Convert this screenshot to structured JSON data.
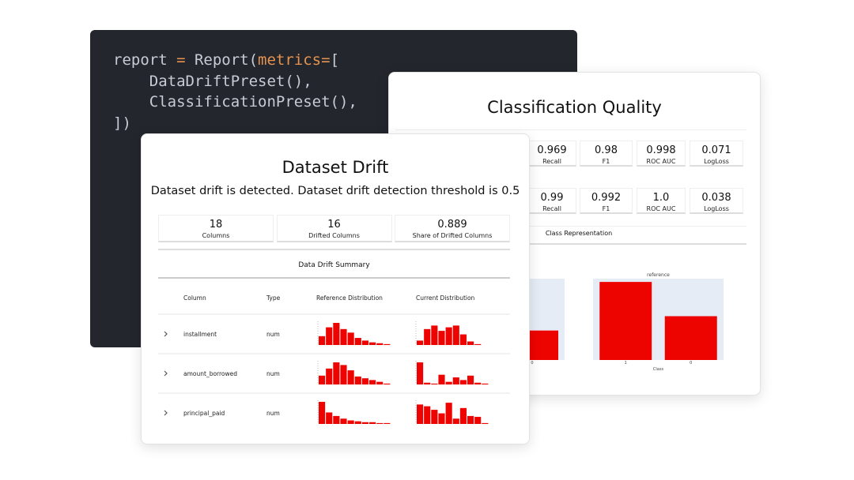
{
  "code": {
    "lines": [
      [
        {
          "t": "report ",
          "k": "p"
        },
        {
          "t": "= ",
          "k": "o"
        },
        {
          "t": "Report(",
          "k": "p"
        },
        {
          "t": "metrics=",
          "k": "o"
        },
        {
          "t": "[",
          "k": "p"
        }
      ],
      [
        {
          "t": "    DataDriftPreset(),",
          "k": "p"
        }
      ],
      [
        {
          "t": "    ClassificationPreset(),",
          "k": "p"
        }
      ],
      [
        {
          "t": "])",
          "k": "p"
        }
      ]
    ]
  },
  "quality": {
    "title": "Classification Quality",
    "rows": [
      [
        {
          "value": "0.969",
          "label": "Recall"
        },
        {
          "value": "0.98",
          "label": "F1"
        },
        {
          "value": "0.998",
          "label": "ROC AUC"
        },
        {
          "value": "0.071",
          "label": "LogLoss"
        }
      ],
      [
        {
          "value": "0.99",
          "label": "Recall"
        },
        {
          "value": "0.992",
          "label": "F1"
        },
        {
          "value": "1.0",
          "label": "ROC AUC"
        },
        {
          "value": "0.038",
          "label": "LogLoss"
        }
      ]
    ],
    "section": "Class Representation",
    "charts": [
      {
        "type": "bar",
        "categories": [
          "0"
        ],
        "values": [
          37
        ]
      },
      {
        "type": "bar",
        "title": "reference",
        "xlabel": "Class",
        "categories": [
          "1",
          "0"
        ],
        "values": [
          98,
          55
        ]
      }
    ]
  },
  "drift": {
    "title": "Dataset Drift",
    "subtitle": "Dataset drift is detected. Dataset drift detection threshold is 0.5",
    "stats": [
      {
        "value": "18",
        "label": "Columns"
      },
      {
        "value": "16",
        "label": "Drifted Columns"
      },
      {
        "value": "0.889",
        "label": "Share of Drifted Columns"
      }
    ],
    "table": {
      "title": "Data Drift Summary",
      "headers": [
        "Column",
        "Type",
        "Reference Distribution",
        "Current Distribution"
      ],
      "rows": [
        {
          "column": "installment",
          "type": "num",
          "reference": [
            10,
            20,
            25,
            18,
            14,
            8,
            5,
            3,
            2,
            1
          ],
          "current": [
            5,
            18,
            22,
            16,
            20,
            22,
            12,
            4,
            1,
            0
          ]
        },
        {
          "column": "amount_borrowed",
          "type": "num",
          "reference": [
            10,
            18,
            25,
            22,
            16,
            9,
            7,
            5,
            3,
            1
          ],
          "current": [
            25,
            2,
            1,
            11,
            3,
            8,
            5,
            10,
            2,
            1
          ]
        },
        {
          "column": "principal_paid",
          "type": "num",
          "reference": [
            25,
            13,
            9,
            6,
            4,
            3,
            2,
            2,
            1,
            1
          ],
          "current": [
            22,
            20,
            16,
            12,
            24,
            6,
            18,
            9,
            8,
            1
          ]
        }
      ]
    }
  }
}
